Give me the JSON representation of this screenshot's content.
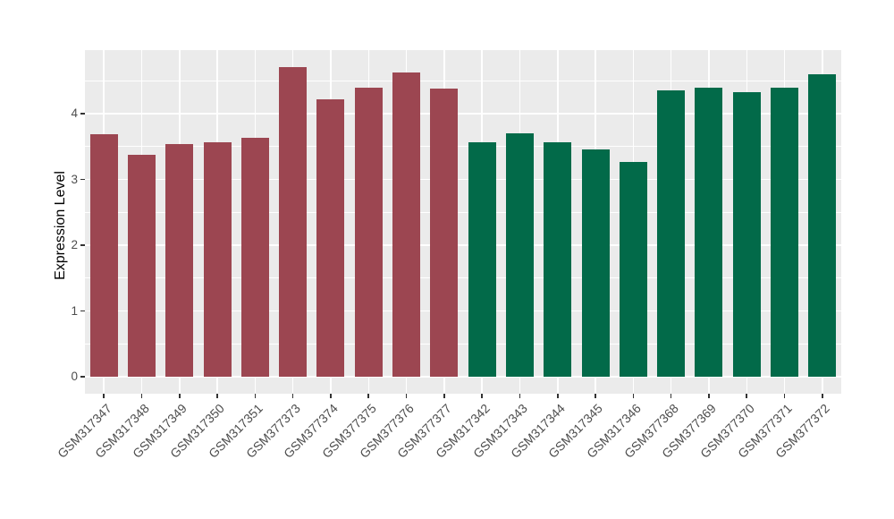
{
  "chart_data": {
    "type": "bar",
    "title": "",
    "xlabel": "",
    "ylabel": "Expression Level",
    "ylim": [
      0,
      4.97
    ],
    "yticks": [
      0,
      1,
      2,
      3,
      4
    ],
    "yminor": [
      0.5,
      1.5,
      2.5,
      3.5,
      4.5
    ],
    "grid": true,
    "legend": "none",
    "panel_bg": "#EBEBEB",
    "grid_color": "#FFFFFF",
    "tick_color": "#333333",
    "tick_label_color": "#4D4D4D",
    "group_colors": {
      "group1": "#9C4651",
      "group2": "#026A49"
    },
    "categories": [
      "GSM317347",
      "GSM317348",
      "GSM317349",
      "GSM317350",
      "GSM317351",
      "GSM377373",
      "GSM377374",
      "GSM377375",
      "GSM377376",
      "GSM377377",
      "GSM317342",
      "GSM317343",
      "GSM317344",
      "GSM317345",
      "GSM317346",
      "GSM377368",
      "GSM377369",
      "GSM377370",
      "GSM377371",
      "GSM377372"
    ],
    "bars": [
      {
        "label": "GSM317347",
        "value": 3.69,
        "group": "group1"
      },
      {
        "label": "GSM317348",
        "value": 3.37,
        "group": "group1"
      },
      {
        "label": "GSM317349",
        "value": 3.54,
        "group": "group1"
      },
      {
        "label": "GSM317350",
        "value": 3.56,
        "group": "group1"
      },
      {
        "label": "GSM317351",
        "value": 3.63,
        "group": "group1"
      },
      {
        "label": "GSM377373",
        "value": 4.71,
        "group": "group1"
      },
      {
        "label": "GSM377374",
        "value": 4.22,
        "group": "group1"
      },
      {
        "label": "GSM377375",
        "value": 4.39,
        "group": "group1"
      },
      {
        "label": "GSM377376",
        "value": 4.63,
        "group": "group1"
      },
      {
        "label": "GSM377377",
        "value": 4.38,
        "group": "group1"
      },
      {
        "label": "GSM317342",
        "value": 3.57,
        "group": "group2"
      },
      {
        "label": "GSM317343",
        "value": 3.7,
        "group": "group2"
      },
      {
        "label": "GSM317344",
        "value": 3.56,
        "group": "group2"
      },
      {
        "label": "GSM317345",
        "value": 3.46,
        "group": "group2"
      },
      {
        "label": "GSM317346",
        "value": 3.26,
        "group": "group2"
      },
      {
        "label": "GSM377368",
        "value": 4.35,
        "group": "group2"
      },
      {
        "label": "GSM377369",
        "value": 4.4,
        "group": "group2"
      },
      {
        "label": "GSM377370",
        "value": 4.33,
        "group": "group2"
      },
      {
        "label": "GSM377371",
        "value": 4.39,
        "group": "group2"
      },
      {
        "label": "GSM377372",
        "value": 4.6,
        "group": "group2"
      }
    ]
  }
}
